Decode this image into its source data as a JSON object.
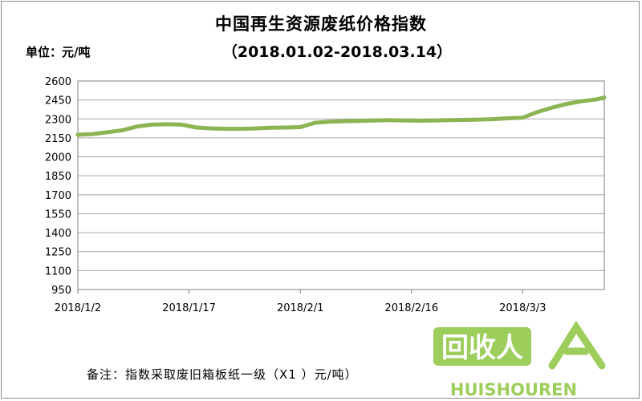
{
  "title": "中国再生资源废纸价格指数",
  "subtitle": "（2018.01.02-2018.03.14）",
  "unit_label": "单位：元/吨",
  "note": "备注：指数采取废旧箱板纸一级（X1 ）元/吨）",
  "watermark": {
    "logo_text": "回收人",
    "latin": "HUISHOUREN",
    "color": "#8cc63f"
  },
  "chart_data": {
    "type": "line",
    "title": "中国再生资源废纸价格指数",
    "subtitle": "（2018.01.02-2018.03.14）",
    "xlabel": "",
    "ylabel": "单位：元/吨",
    "ylim": [
      950,
      2600
    ],
    "yticks": [
      2600,
      2450,
      2300,
      2150,
      2000,
      1850,
      1700,
      1550,
      1400,
      1250,
      1100,
      950
    ],
    "xticks": [
      "2018/1/2",
      "2018/1/17",
      "2018/2/1",
      "2018/2/16",
      "2018/3/3"
    ],
    "grid": true,
    "legend": "none",
    "line_color": "#8cb453",
    "x": [
      "2018/1/2",
      "2018/1/4",
      "2018/1/6",
      "2018/1/8",
      "2018/1/10",
      "2018/1/12",
      "2018/1/14",
      "2018/1/16",
      "2018/1/18",
      "2018/1/20",
      "2018/1/22",
      "2018/1/24",
      "2018/1/26",
      "2018/1/28",
      "2018/1/30",
      "2018/2/1",
      "2018/2/3",
      "2018/2/5",
      "2018/2/7",
      "2018/2/9",
      "2018/2/11",
      "2018/2/13",
      "2018/2/15",
      "2018/2/17",
      "2018/2/19",
      "2018/2/21",
      "2018/2/23",
      "2018/2/25",
      "2018/2/27",
      "2018/3/1",
      "2018/3/3",
      "2018/3/5",
      "2018/3/7",
      "2018/3/9",
      "2018/3/11",
      "2018/3/13",
      "2018/3/14"
    ],
    "values": [
      2175,
      2180,
      2195,
      2210,
      2240,
      2255,
      2258,
      2255,
      2232,
      2225,
      2222,
      2222,
      2225,
      2230,
      2232,
      2235,
      2270,
      2278,
      2282,
      2284,
      2287,
      2290,
      2288,
      2286,
      2288,
      2290,
      2292,
      2295,
      2298,
      2305,
      2310,
      2355,
      2390,
      2420,
      2440,
      2455,
      2470
    ]
  }
}
